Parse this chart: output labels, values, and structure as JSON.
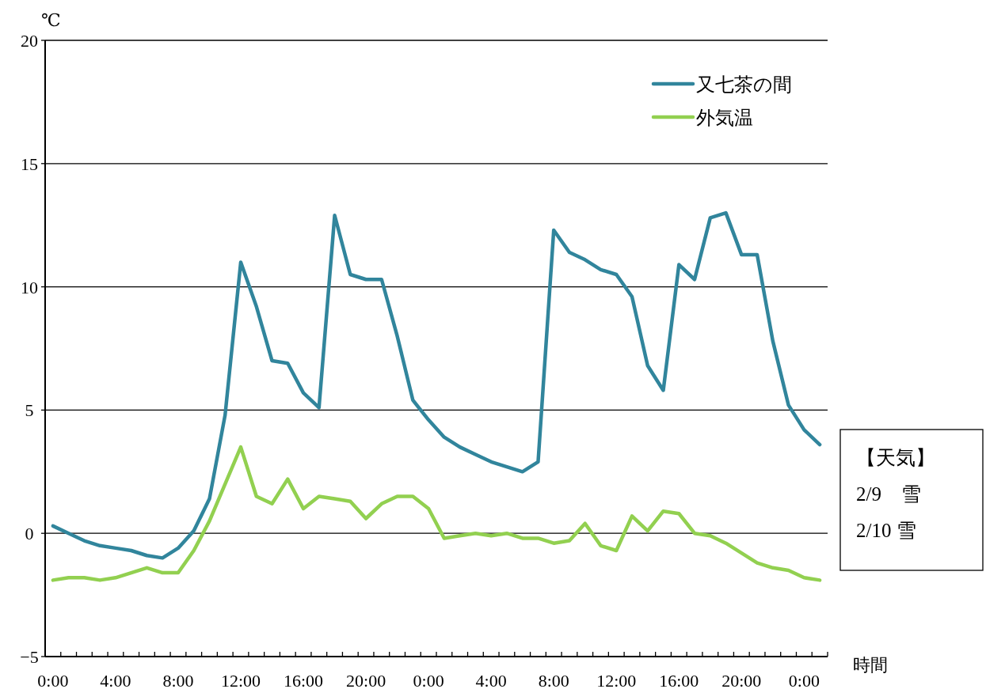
{
  "chart_data": {
    "type": "line",
    "ylabel": "℃",
    "xlabel": "時間",
    "categories": [
      "0:00",
      null,
      null,
      null,
      "4:00",
      null,
      null,
      null,
      "8:00",
      null,
      null,
      null,
      "12:00",
      null,
      null,
      null,
      "16:00",
      null,
      null,
      null,
      "20:00",
      null,
      null,
      null,
      "0:00",
      null,
      null,
      null,
      "4:00",
      null,
      null,
      null,
      "8:00",
      null,
      null,
      null,
      "12:00",
      null,
      null,
      null,
      "16:00",
      null,
      null,
      null,
      "20:00",
      null,
      null,
      null,
      "0:00",
      null
    ],
    "series": [
      {
        "name": "又七茶の間",
        "color": "#31859c",
        "values": [
          0.3,
          0.0,
          -0.3,
          -0.5,
          -0.6,
          -0.7,
          -0.9,
          -1.0,
          -0.6,
          0.1,
          1.4,
          4.8,
          11.0,
          9.2,
          7.0,
          6.9,
          5.7,
          5.1,
          12.9,
          10.5,
          10.3,
          10.3,
          8.0,
          5.4,
          4.6,
          3.9,
          3.5,
          3.2,
          2.9,
          2.7,
          2.5,
          2.9,
          12.3,
          11.4,
          11.1,
          10.7,
          10.5,
          9.6,
          6.8,
          5.8,
          10.9,
          10.3,
          12.8,
          13.0,
          11.3,
          11.3,
          7.8,
          5.2,
          4.2,
          3.6
        ]
      },
      {
        "name": "外気温",
        "color": "#92d050",
        "values": [
          -1.9,
          -1.8,
          -1.8,
          -1.9,
          -1.8,
          -1.6,
          -1.4,
          -1.6,
          -1.6,
          -0.7,
          0.5,
          2.0,
          3.5,
          1.5,
          1.2,
          2.2,
          1.0,
          1.5,
          1.4,
          1.3,
          0.6,
          1.2,
          1.5,
          1.5,
          1.0,
          -0.2,
          -0.1,
          0.0,
          -0.1,
          0.0,
          -0.2,
          -0.2,
          -0.4,
          -0.3,
          0.4,
          -0.5,
          -0.7,
          0.7,
          0.1,
          0.9,
          0.8,
          0.0,
          -0.1,
          -0.4,
          -0.8,
          -1.2,
          -1.4,
          -1.5,
          -1.8,
          -1.9
        ]
      }
    ],
    "ylim": [
      -5,
      20
    ],
    "yticks": [
      {
        "value": -5,
        "label": "−5"
      },
      0,
      5,
      10,
      15,
      20
    ],
    "grid": "y",
    "legend": "top right",
    "annotations": [
      "【天気】",
      "2/9　雪",
      "2/10 雪"
    ]
  }
}
